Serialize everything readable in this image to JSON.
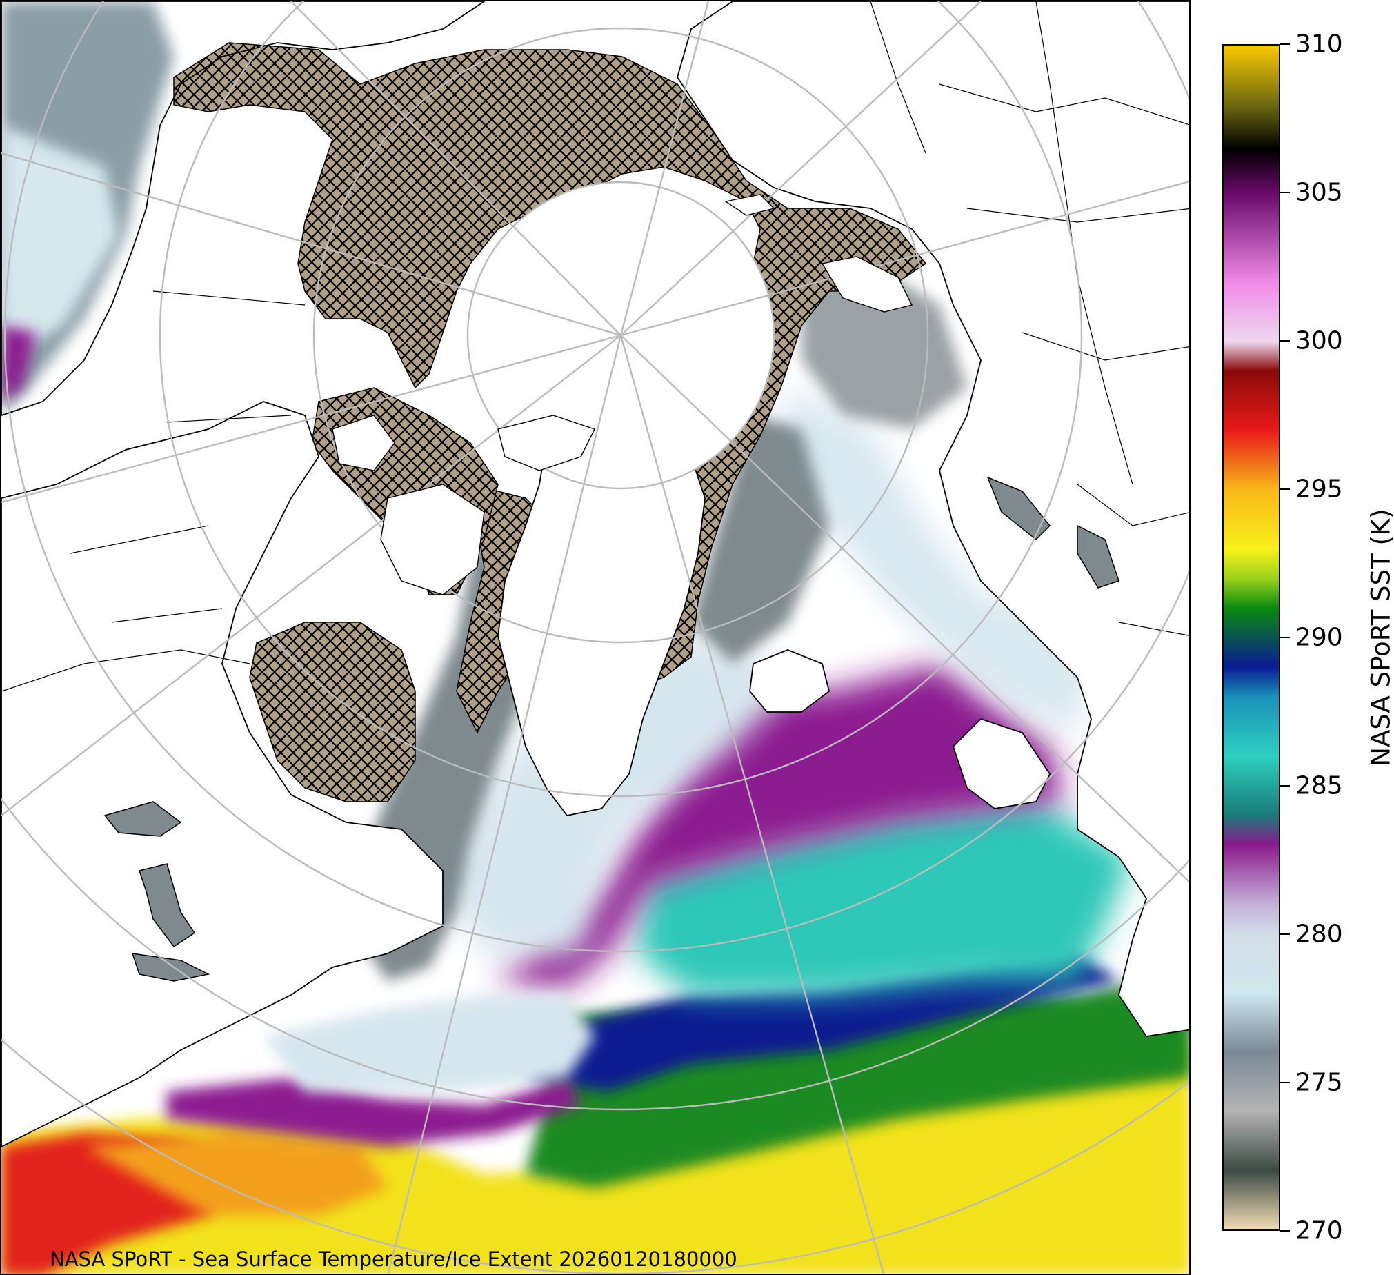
{
  "caption": "NASA SPoRT - Sea Surface Temperature/Ice Extent 20260120180000",
  "colorbar": {
    "label": "NASA SPoRT SST (K)",
    "min": 270,
    "max": 310,
    "ticks": [
      "310",
      "305",
      "300",
      "295",
      "290",
      "285",
      "280",
      "275",
      "270"
    ],
    "stops": [
      {
        "value": 270,
        "color": "#f2dcb4"
      },
      {
        "value": 272,
        "color": "#3c4a44"
      },
      {
        "value": 274,
        "color": "#b4b4b4"
      },
      {
        "value": 276,
        "color": "#7a8a96"
      },
      {
        "value": 278,
        "color": "#cfe8ee"
      },
      {
        "value": 280,
        "color": "#d2dbe6"
      },
      {
        "value": 281,
        "color": "#c4b0d8"
      },
      {
        "value": 283,
        "color": "#8a1a8a"
      },
      {
        "value": 284,
        "color": "#1a7a78"
      },
      {
        "value": 286,
        "color": "#2ed0c0"
      },
      {
        "value": 288,
        "color": "#1a90b8"
      },
      {
        "value": 289,
        "color": "#0a1c94"
      },
      {
        "value": 291,
        "color": "#0a8a10"
      },
      {
        "value": 292,
        "color": "#9cd21a"
      },
      {
        "value": 293,
        "color": "#f8f01a"
      },
      {
        "value": 295,
        "color": "#f8b81a"
      },
      {
        "value": 297,
        "color": "#e81a1a"
      },
      {
        "value": 299,
        "color": "#8a0a0a"
      },
      {
        "value": 300,
        "color": "#eed8ee"
      },
      {
        "value": 302,
        "color": "#f08ae8"
      },
      {
        "value": 305,
        "color": "#6a0a6a"
      },
      {
        "value": 306.5,
        "color": "#000000"
      },
      {
        "value": 308,
        "color": "#6e6a10"
      },
      {
        "value": 310,
        "color": "#f8c800"
      }
    ]
  },
  "map": {
    "projection": "north-polar-stereographic",
    "sea_ice_style": "hatched-tan",
    "colors": {
      "ice": "#b0a088",
      "land": "#ffffff",
      "grid": "#bbbbbb",
      "coast": "#000000"
    }
  }
}
